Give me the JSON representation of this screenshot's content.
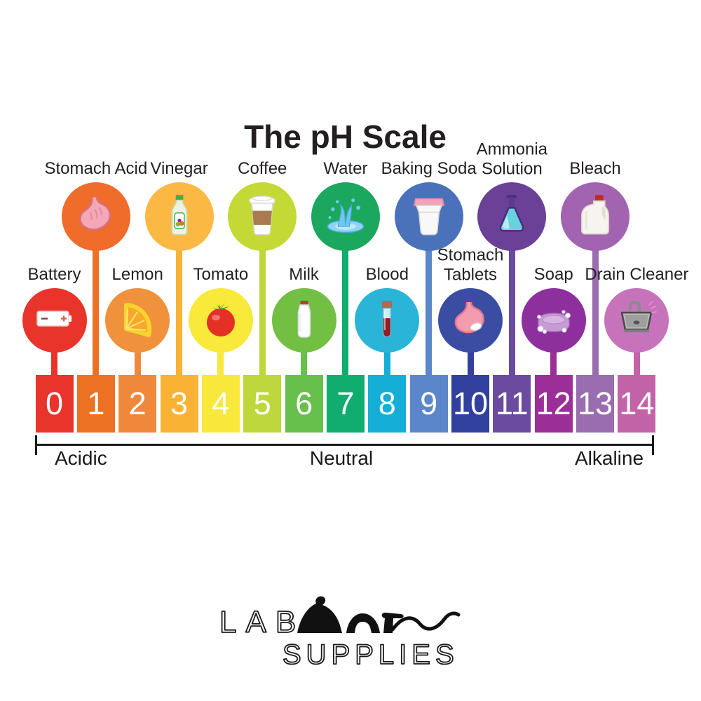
{
  "title": "The pH Scale",
  "axis": {
    "acidic": "Acidic",
    "neutral": "Neutral",
    "alkaline": "Alkaline"
  },
  "brand": {
    "word1": "LAB",
    "rat_icon": "rat-silhouette-icon",
    "word2": "SUPPLIES"
  },
  "scale": {
    "items": [
      {
        "ph": "0",
        "label": [
          "Battery"
        ],
        "row": "bottom",
        "icon": "battery-icon",
        "block_color": "#e8342b",
        "circle_color": "#e8342b"
      },
      {
        "ph": "1",
        "label": [
          "Stomach Acid"
        ],
        "row": "top",
        "icon": "stomach-icon",
        "block_color": "#ed7123",
        "circle_color": "#f06c2b"
      },
      {
        "ph": "2",
        "label": [
          "Lemon"
        ],
        "row": "bottom",
        "icon": "lemon-slice-icon",
        "block_color": "#f0883c",
        "circle_color": "#f0923c"
      },
      {
        "ph": "3",
        "label": [
          "Vinegar"
        ],
        "row": "top",
        "icon": "vinegar-bottle-icon",
        "block_color": "#f9b233",
        "circle_color": "#fbb843"
      },
      {
        "ph": "4",
        "label": [
          "Tomato"
        ],
        "row": "bottom",
        "icon": "tomato-icon",
        "block_color": "#f8e83b",
        "circle_color": "#f8e93a"
      },
      {
        "ph": "5",
        "label": [
          "Coffee"
        ],
        "row": "top",
        "icon": "coffee-cup-icon",
        "block_color": "#bed73c",
        "circle_color": "#c4d935"
      },
      {
        "ph": "6",
        "label": [
          "Milk"
        ],
        "row": "bottom",
        "icon": "milk-bottle-icon",
        "block_color": "#67bf4c",
        "circle_color": "#72bf44"
      },
      {
        "ph": "7",
        "label": [
          "Water"
        ],
        "row": "top",
        "icon": "water-splash-icon",
        "block_color": "#10ad6e",
        "circle_color": "#1ca75f"
      },
      {
        "ph": "8",
        "label": [
          "Blood"
        ],
        "row": "bottom",
        "icon": "blood-tube-icon",
        "block_color": "#14aed6",
        "circle_color": "#2ab5d8"
      },
      {
        "ph": "9",
        "label": [
          "Baking Soda"
        ],
        "row": "top",
        "icon": "baking-soda-tub-icon",
        "block_color": "#5b86c9",
        "circle_color": "#4a72ba"
      },
      {
        "ph": "10",
        "label": [
          "Stomach",
          "Tablets"
        ],
        "row": "bottom",
        "icon": "stomach-tablet-icon",
        "block_color": "#32409e",
        "circle_color": "#3a4da3"
      },
      {
        "ph": "11",
        "label": [
          "Ammonia",
          "Solution"
        ],
        "row": "top",
        "icon": "flask-icon",
        "block_color": "#6a4ba0",
        "circle_color": "#6a4197"
      },
      {
        "ph": "12",
        "label": [
          "Soap"
        ],
        "row": "bottom",
        "icon": "soap-bar-icon",
        "block_color": "#9b2f97",
        "circle_color": "#8e2f9e"
      },
      {
        "ph": "13",
        "label": [
          "Bleach"
        ],
        "row": "top",
        "icon": "bleach-jug-icon",
        "block_color": "#9a6cb0",
        "circle_color": "#a263b0"
      },
      {
        "ph": "14",
        "label": [
          "Drain Cleaner"
        ],
        "row": "bottom",
        "icon": "sink-icon",
        "block_color": "#c263a8",
        "circle_color": "#c673bc"
      }
    ]
  },
  "colors": {
    "text": "#231f20",
    "axis_line": "#1a1a1a",
    "number_text": "#ffffff"
  }
}
